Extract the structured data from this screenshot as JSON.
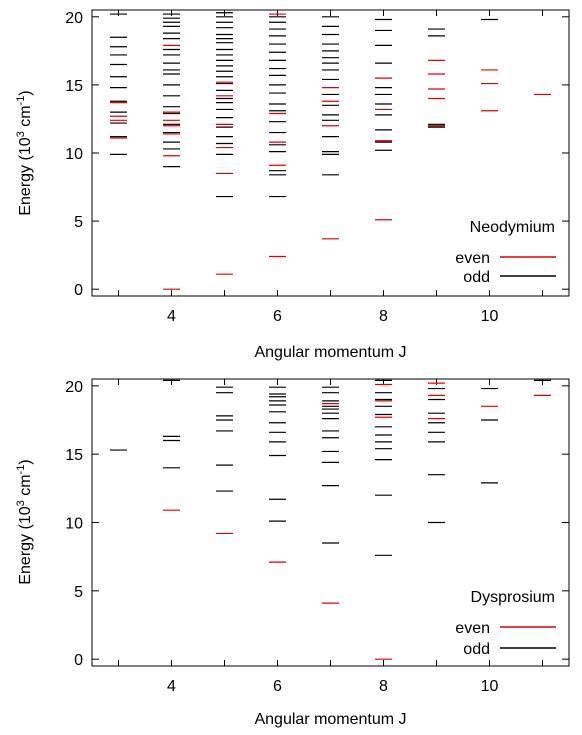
{
  "chart_data": [
    {
      "type": "energy-level-diagram",
      "xlabel": "Angular momentum J",
      "ylabel_main": "Energy (10",
      "ylabel_sup1": "3",
      "ylabel_unit": " cm",
      "ylabel_sup2": "-1",
      "ylabel_end": ")",
      "xlim": [
        2.5,
        11.5
      ],
      "ylim": [
        -0.5,
        20.5
      ],
      "xticks": [
        "4",
        "6",
        "8",
        "10"
      ],
      "xtick_values": [
        4,
        6,
        8,
        10
      ],
      "yticks": [
        "0",
        "5",
        "10",
        "15",
        "20"
      ],
      "ytick_values": [
        0,
        5,
        10,
        15,
        20
      ],
      "legend_title": "Neodymium",
      "legend_placement": "bottom-right",
      "grid": false,
      "series": [
        {
          "name": "even",
          "color": "#e00000",
          "levels": [
            {
              "J": 3,
              "E": [
                11.1,
                12.4,
                12.7,
                13.7
              ]
            },
            {
              "J": 4,
              "E": [
                0.0,
                9.8,
                11.4,
                12.0,
                12.4,
                13.0,
                17.9
              ]
            },
            {
              "J": 5,
              "E": [
                1.1,
                8.5,
                10.4,
                12.1,
                14.2,
                15.2
              ]
            },
            {
              "J": 6,
              "E": [
                2.4,
                9.1,
                10.8,
                12.9,
                20.2
              ]
            },
            {
              "J": 7,
              "E": [
                3.7,
                12.0,
                13.8,
                14.8
              ]
            },
            {
              "J": 8,
              "E": [
                5.1,
                10.9,
                13.2,
                15.5
              ]
            },
            {
              "J": 9,
              "E": [
                12.0,
                14.0,
                14.7,
                15.8,
                16.8
              ]
            },
            {
              "J": 10,
              "E": [
                13.1,
                15.1,
                16.1
              ]
            },
            {
              "J": 11,
              "E": [
                14.3
              ]
            }
          ]
        },
        {
          "name": "odd",
          "color": "#000000",
          "levels": [
            {
              "J": 3,
              "E": [
                9.9,
                11.2,
                12.2,
                13.0,
                13.8,
                14.8,
                15.6,
                16.5,
                17.2,
                17.8,
                18.5,
                20.2
              ]
            },
            {
              "J": 4,
              "E": [
                9.0,
                10.3,
                10.8,
                11.5,
                12.1,
                12.9,
                13.4,
                14.2,
                15.0,
                15.8,
                16.1,
                16.6,
                17.2,
                17.6,
                18.4,
                18.8,
                19.3,
                19.6,
                19.9,
                20.2
              ]
            },
            {
              "J": 5,
              "E": [
                6.8,
                9.9,
                10.7,
                11.2,
                11.9,
                12.6,
                13.2,
                13.7,
                14.0,
                14.6,
                15.1,
                15.6,
                16.0,
                16.4,
                16.8,
                17.2,
                17.6,
                18.1,
                18.4,
                18.7,
                19.2,
                19.6,
                20.0,
                20.3
              ]
            },
            {
              "J": 6,
              "E": [
                6.8,
                8.4,
                8.7,
                10.1,
                10.6,
                11.5,
                12.3,
                13.1,
                13.6,
                14.4,
                15.0,
                15.7,
                16.2,
                16.8,
                17.4,
                18.0,
                18.6,
                19.1,
                19.6,
                20.0
              ]
            },
            {
              "J": 7,
              "E": [
                8.4,
                9.9,
                10.1,
                11.2,
                12.4,
                12.8,
                13.5,
                14.3,
                15.4,
                16.1,
                16.6,
                17.0,
                17.5,
                18.0,
                18.7,
                19.3,
                20.0
              ]
            },
            {
              "J": 8,
              "E": [
                10.2,
                10.8,
                11.7,
                12.8,
                13.6,
                14.3,
                14.8,
                16.6,
                17.9,
                19.0,
                19.8
              ]
            },
            {
              "J": 9,
              "E": [
                11.9,
                12.1,
                18.6,
                19.1
              ]
            },
            {
              "J": 10,
              "E": [
                19.8
              ]
            }
          ]
        }
      ]
    },
    {
      "type": "energy-level-diagram",
      "xlabel": "Angular momentum J",
      "ylabel_main": "Energy (10",
      "ylabel_sup1": "3",
      "ylabel_unit": " cm",
      "ylabel_sup2": "-1",
      "ylabel_end": ")",
      "xlim": [
        2.5,
        11.5
      ],
      "ylim": [
        -0.5,
        20.5
      ],
      "xticks": [
        "4",
        "6",
        "8",
        "10"
      ],
      "xtick_values": [
        4,
        6,
        8,
        10
      ],
      "yticks": [
        "0",
        "5",
        "10",
        "15",
        "20"
      ],
      "ytick_values": [
        0,
        5,
        10,
        15,
        20
      ],
      "legend_title": "Dysprosium",
      "legend_placement": "bottom-right",
      "grid": false,
      "series": [
        {
          "name": "even",
          "color": "#e00000",
          "levels": [
            {
              "J": 4,
              "E": [
                10.9
              ]
            },
            {
              "J": 5,
              "E": [
                9.2
              ]
            },
            {
              "J": 6,
              "E": [
                7.1
              ]
            },
            {
              "J": 7,
              "E": [
                4.1,
                18.7
              ]
            },
            {
              "J": 8,
              "E": [
                0.0,
                17.7,
                18.9,
                20.1
              ]
            },
            {
              "J": 9,
              "E": [
                17.6,
                19.3,
                20.2
              ]
            },
            {
              "J": 10,
              "E": [
                18.5
              ]
            },
            {
              "J": 11,
              "E": [
                19.3
              ]
            }
          ]
        },
        {
          "name": "odd",
          "color": "#000000",
          "levels": [
            {
              "J": 3,
              "E": [
                15.3
              ]
            },
            {
              "J": 4,
              "E": [
                14.0,
                16.0,
                16.3,
                20.4
              ]
            },
            {
              "J": 5,
              "E": [
                12.3,
                14.2,
                16.7,
                17.5,
                17.8,
                19.5,
                19.9
              ]
            },
            {
              "J": 6,
              "E": [
                10.1,
                11.7,
                14.9,
                15.9,
                16.6,
                17.3,
                18.1,
                18.6,
                18.9,
                19.2,
                19.4,
                19.9
              ]
            },
            {
              "J": 7,
              "E": [
                8.5,
                12.7,
                14.4,
                15.2,
                16.2,
                16.7,
                17.6,
                18.0,
                18.3,
                18.5,
                18.9,
                19.5,
                19.9
              ]
            },
            {
              "J": 8,
              "E": [
                7.6,
                12.0,
                14.6,
                15.4,
                15.9,
                16.4,
                17.0,
                17.9,
                18.5,
                19.0,
                19.5,
                20.4
              ]
            },
            {
              "J": 9,
              "E": [
                10.0,
                13.5,
                15.9,
                16.6,
                17.3,
                18.0,
                19.0,
                19.8
              ]
            },
            {
              "J": 10,
              "E": [
                12.9,
                17.5,
                19.8
              ]
            },
            {
              "J": 11,
              "E": [
                20.4
              ]
            }
          ]
        }
      ]
    }
  ]
}
